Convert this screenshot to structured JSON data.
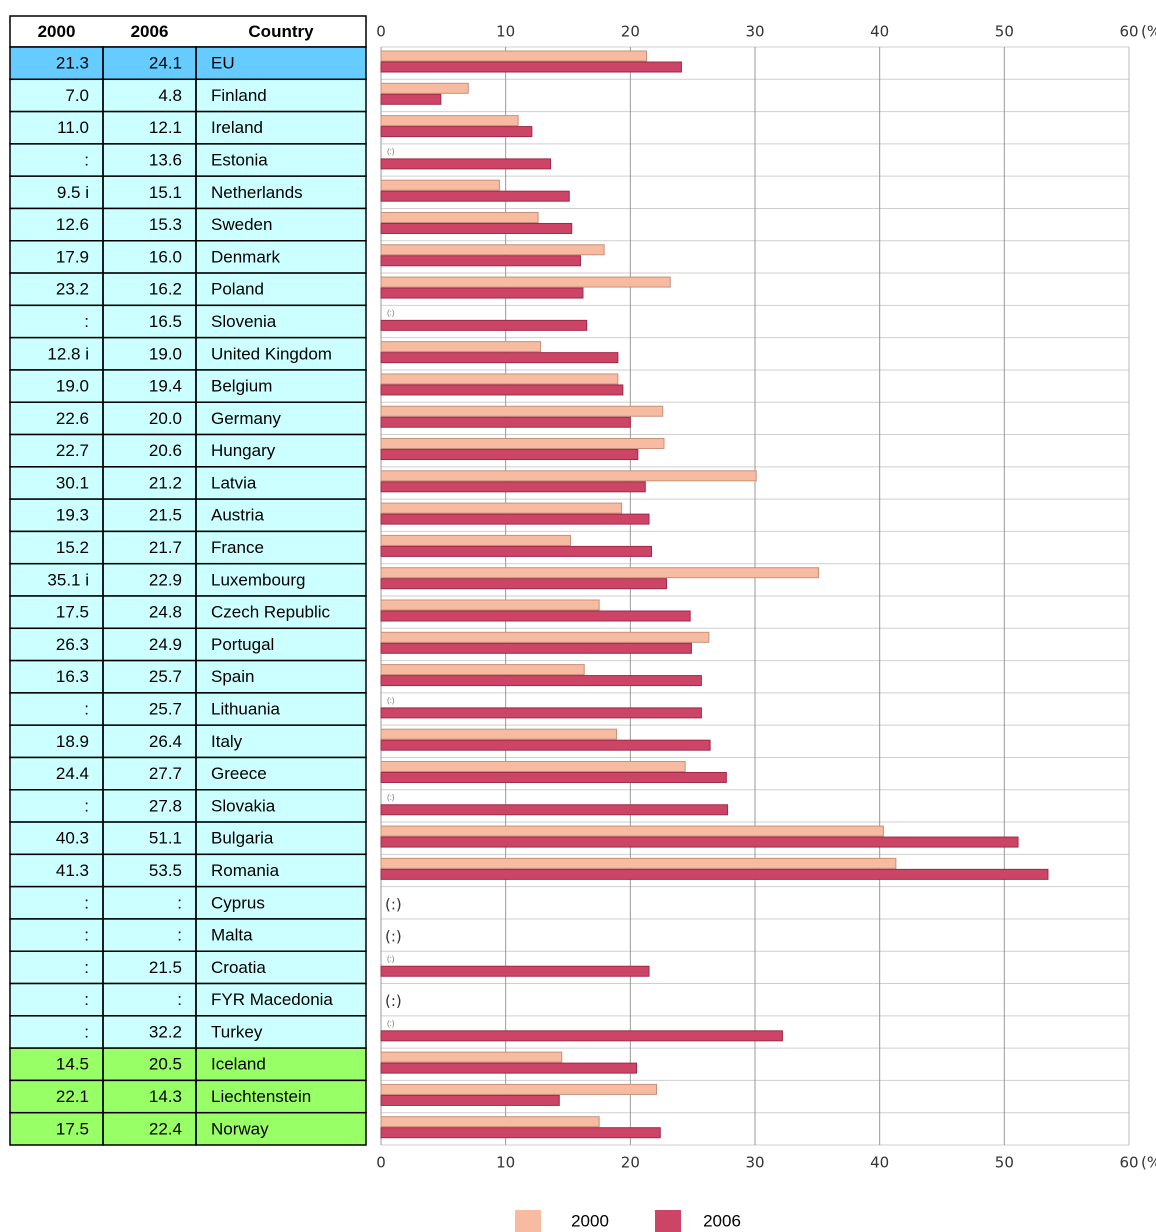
{
  "chart_data": {
    "type": "bar",
    "orientation": "horizontal",
    "country_header": "Country",
    "categories": [
      "EU",
      "Finland",
      "Ireland",
      "Estonia",
      "Netherlands",
      "Sweden",
      "Denmark",
      "Poland",
      "Slovenia",
      "United Kingdom",
      "Belgium",
      "Germany",
      "Hungary",
      "Latvia",
      "Austria",
      "France",
      "Luxembourg",
      "Czech Republic",
      "Portugal",
      "Spain",
      "Lithuania",
      "Italy",
      "Greece",
      "Slovakia",
      "Bulgaria",
      "Romania",
      "Cyprus",
      "Malta",
      "Croatia",
      "FYR Macedonia",
      "Turkey",
      "Iceland",
      "Liechtenstein",
      "Norway"
    ],
    "row_colors": [
      "#66ccff",
      "#ccffff",
      "#ccffff",
      "#ccffff",
      "#ccffff",
      "#ccffff",
      "#ccffff",
      "#ccffff",
      "#ccffff",
      "#ccffff",
      "#ccffff",
      "#ccffff",
      "#ccffff",
      "#ccffff",
      "#ccffff",
      "#ccffff",
      "#ccffff",
      "#ccffff",
      "#ccffff",
      "#ccffff",
      "#ccffff",
      "#ccffff",
      "#ccffff",
      "#ccffff",
      "#ccffff",
      "#ccffff",
      "#ccffff",
      "#ccffff",
      "#ccffff",
      "#ccffff",
      "#ccffff",
      "#99ff66",
      "#99ff66",
      "#99ff66"
    ],
    "series": [
      {
        "name": "2000",
        "color": "#f7bba1",
        "stroke": "#c8907a",
        "values": [
          21.3,
          7.0,
          11.0,
          null,
          9.5,
          12.6,
          17.9,
          23.2,
          null,
          12.8,
          19.0,
          22.6,
          22.7,
          30.1,
          19.3,
          15.2,
          35.1,
          17.5,
          26.3,
          16.3,
          null,
          18.9,
          24.4,
          null,
          40.3,
          41.3,
          null,
          null,
          null,
          null,
          null,
          14.5,
          22.1,
          17.5
        ],
        "value_labels": [
          "21.3",
          "7.0",
          "11.0",
          ":",
          "9.5 i",
          "12.6",
          "17.9",
          "23.2",
          ":",
          "12.8 i",
          "19.0",
          "22.6",
          "22.7",
          "30.1",
          "19.3",
          "15.2",
          "35.1 i",
          "17.5",
          "26.3",
          "16.3",
          ":",
          "18.9",
          "24.4",
          ":",
          "40.3",
          "41.3",
          ":",
          ":",
          ":",
          ":",
          ":",
          "14.5",
          "22.1",
          "17.5"
        ]
      },
      {
        "name": "2006",
        "color": "#cc4466",
        "stroke": "#a02a48",
        "values": [
          24.1,
          4.8,
          12.1,
          13.6,
          15.1,
          15.3,
          16.0,
          16.2,
          16.5,
          19.0,
          19.4,
          20.0,
          20.6,
          21.2,
          21.5,
          21.7,
          22.9,
          24.8,
          24.9,
          25.7,
          25.7,
          26.4,
          27.7,
          27.8,
          51.1,
          53.5,
          null,
          null,
          21.5,
          null,
          32.2,
          20.5,
          14.3,
          22.4
        ],
        "value_labels": [
          "24.1",
          "4.8",
          "12.1",
          "13.6",
          "15.1",
          "15.3",
          "16.0",
          "16.2",
          "16.5",
          "19.0",
          "19.4",
          "20.0",
          "20.6",
          "21.2",
          "21.5",
          "21.7",
          "22.9",
          "24.8",
          "24.9",
          "25.7",
          "25.7",
          "26.4",
          "27.7",
          "27.8",
          "51.1",
          "53.5",
          ":",
          ":",
          "21.5",
          ":",
          "32.2",
          "20.5",
          "14.3",
          "22.4"
        ]
      }
    ],
    "missing_label": "(:)",
    "x_unit": "(%)",
    "xlim": [
      0,
      60
    ],
    "xticks": [
      0,
      10,
      20,
      30,
      40,
      50,
      60
    ],
    "grid": true
  }
}
